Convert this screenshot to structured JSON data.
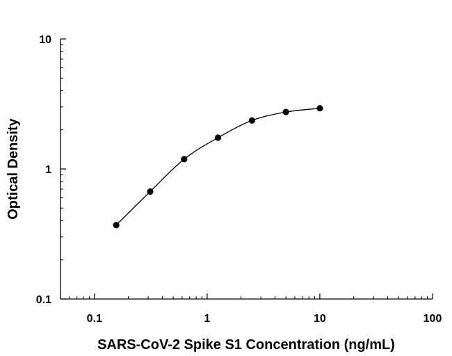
{
  "chart_data": {
    "type": "scatter",
    "x_scale": "log",
    "y_scale": "log",
    "xlim": [
      0.05,
      100
    ],
    "ylim": [
      0.1,
      10
    ],
    "x_ticks": [
      {
        "value": 0.1,
        "label": "0.1"
      },
      {
        "value": 1,
        "label": "1"
      },
      {
        "value": 10,
        "label": "10"
      },
      {
        "value": 100,
        "label": "100"
      }
    ],
    "y_ticks": [
      {
        "value": 0.1,
        "label": "0.1"
      },
      {
        "value": 1,
        "label": "1"
      },
      {
        "value": 10,
        "label": "10"
      }
    ],
    "xlabel": "SARS-CoV-2 Spike S1 Concentration (ng/mL)",
    "ylabel": "Optical Density",
    "grid": false,
    "legend": "none",
    "fit_curve": true,
    "marker_color": "#000000",
    "line_color": "#000000",
    "series": [
      {
        "x": [
          0.156,
          0.3125,
          0.625,
          1.25,
          2.5,
          5,
          10
        ],
        "y": [
          0.37,
          0.67,
          1.19,
          1.74,
          2.36,
          2.74,
          2.93
        ]
      }
    ]
  }
}
